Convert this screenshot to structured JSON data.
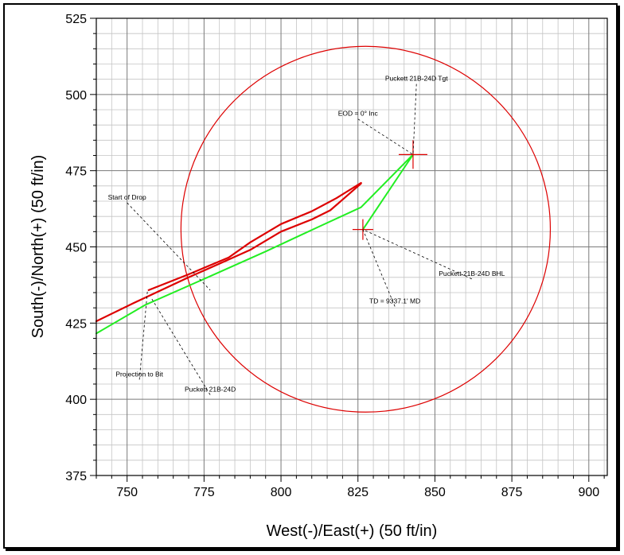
{
  "chart_data": {
    "type": "line",
    "xlabel": "West(-)/East(+) (50 ft/in)",
    "ylabel": "South(-)/North(+) (50 ft/in)",
    "xlim": [
      740,
      906
    ],
    "ylim": [
      375,
      525
    ],
    "x_ticks": [
      750,
      775,
      800,
      825,
      850,
      875,
      900
    ],
    "y_ticks": [
      375,
      400,
      425,
      450,
      475,
      500,
      525
    ],
    "grid": true,
    "series": [
      {
        "color": "#dd0000",
        "points": [
          [
            740,
            425.6
          ],
          [
            752,
            431.5
          ],
          [
            770,
            440
          ],
          [
            780,
            444.5
          ],
          [
            790,
            449
          ],
          [
            800,
            455
          ],
          [
            810,
            459
          ],
          [
            816,
            462
          ],
          [
            820,
            465.5
          ],
          [
            826,
            470.8
          ]
        ]
      },
      {
        "color": "#dd0000",
        "points": [
          [
            757,
            435.8
          ],
          [
            770,
            441
          ],
          [
            783,
            446.5
          ],
          [
            790,
            451.5
          ],
          [
            800,
            457.5
          ],
          [
            810,
            461.7
          ],
          [
            818,
            466
          ],
          [
            826,
            471
          ]
        ]
      },
      {
        "color": "#22ee22",
        "points": [
          [
            740,
            421.6
          ],
          [
            756,
            431
          ],
          [
            775,
            439.5
          ],
          [
            795,
            448.5
          ],
          [
            812,
            456.5
          ],
          [
            826,
            463
          ],
          [
            842.9,
            480.3
          ],
          [
            826.6,
            455.7
          ]
        ]
      }
    ],
    "target_circle": {
      "center": [
        827.5,
        455.8
      ],
      "radius": 60,
      "color": "#dd0000"
    },
    "markers": [
      {
        "name": "Puckett 21B-24D Tgt",
        "at": [
          842.9,
          480.3
        ]
      },
      {
        "name": "Puckett 21B-24D BHL",
        "at": [
          826.6,
          455.7
        ]
      }
    ],
    "annotations": [
      {
        "text": "Puckett 21B-24D Tgt",
        "point": [
          842.9,
          480.3
        ],
        "label": [
          844,
          504.5
        ]
      },
      {
        "text": "EOD = 0° Inc",
        "point": [
          842.9,
          480.3
        ],
        "label": [
          825,
          493
        ]
      },
      {
        "text": "Start of Drop",
        "point": [
          777,
          435.8
        ],
        "label": [
          750,
          465.5
        ]
      },
      {
        "text": "Puckett 21B-24D BHL",
        "point": [
          826.6,
          455.7
        ],
        "label": [
          862,
          440.5
        ]
      },
      {
        "text": "TD = 9337.1' MD",
        "point": [
          826.6,
          455.7
        ],
        "label": [
          837,
          431.5
        ]
      },
      {
        "text": "Projection to Bit",
        "point": [
          756.6,
          435.4
        ],
        "label": [
          754,
          407.5
        ]
      },
      {
        "text": "Puckett 21B-24D",
        "point": [
          758,
          433
        ],
        "label": [
          777,
          402.5
        ]
      }
    ]
  }
}
